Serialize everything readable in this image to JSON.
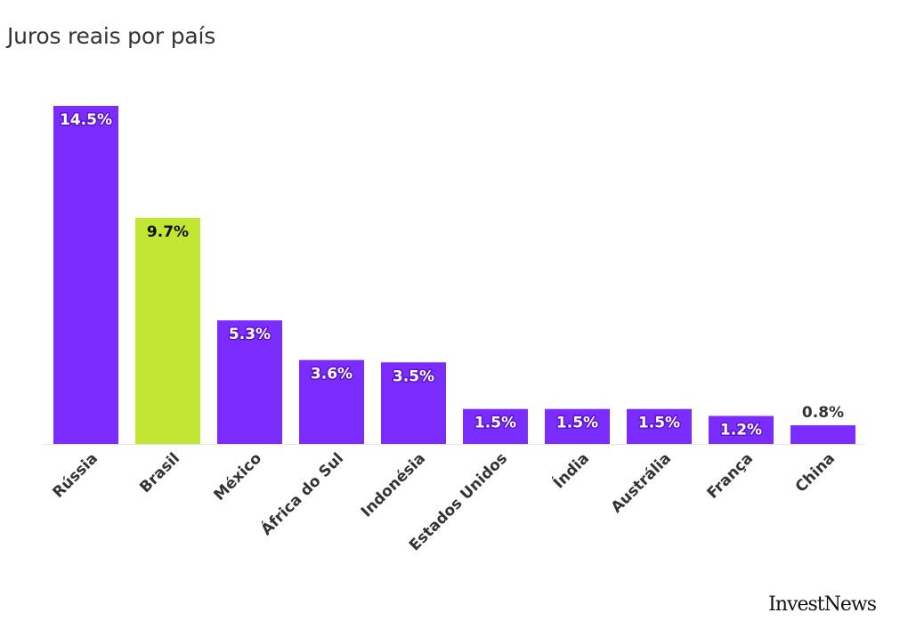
{
  "chart_data": {
    "type": "bar",
    "title": "Juros reais por país",
    "categories": [
      "Rússia",
      "Brasil",
      "México",
      "África do Sul",
      "Indonésia",
      "Estados Unidos",
      "Índia",
      "Austrália",
      "França",
      "China"
    ],
    "values": [
      14.5,
      9.7,
      5.3,
      3.6,
      3.5,
      1.5,
      1.5,
      1.5,
      1.2,
      0.8
    ],
    "value_labels": [
      "14.5%",
      "9.7%",
      "5.3%",
      "3.6%",
      "3.5%",
      "1.5%",
      "1.5%",
      "1.5%",
      "1.2%",
      "0.8%"
    ],
    "colors": {
      "default": "#7b2cff",
      "highlight": "#c3e533",
      "highlight_category": "Brasil",
      "axis": "#e6e6e6"
    },
    "xlabel": "",
    "ylabel": "",
    "ylim": [
      0,
      14.5
    ],
    "grid": false,
    "legend": "none"
  },
  "branding": {
    "logo_text": "InvestNews"
  }
}
